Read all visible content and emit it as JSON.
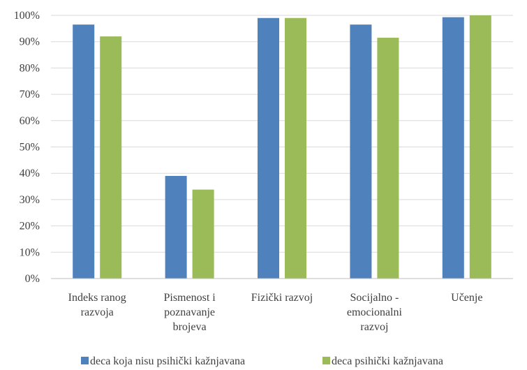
{
  "chart_data": {
    "type": "bar",
    "categories": [
      [
        "Indeks ranog",
        "razvoja"
      ],
      [
        "Pismenost i",
        "poznavanje",
        "brojeva"
      ],
      [
        "Fizički razvoj"
      ],
      [
        "Socijalno -",
        "emocionalni",
        "razvoj"
      ],
      [
        "Učenje"
      ]
    ],
    "series": [
      {
        "name": "deca koja nisu psihički kažnjavana",
        "color": "#4f81bd",
        "values": [
          96.5,
          39.0,
          99.0,
          96.5,
          99.3
        ]
      },
      {
        "name": "deca psihički kažnjavana",
        "color": "#9bbb59",
        "values": [
          92.0,
          33.8,
          99.0,
          91.5,
          100.0
        ]
      }
    ],
    "y_ticks": [
      "0%",
      "10%",
      "20%",
      "30%",
      "40%",
      "50%",
      "60%",
      "70%",
      "80%",
      "90%",
      "100%"
    ],
    "ylim": [
      0,
      100
    ],
    "grid": true,
    "legend_position": "bottom"
  }
}
